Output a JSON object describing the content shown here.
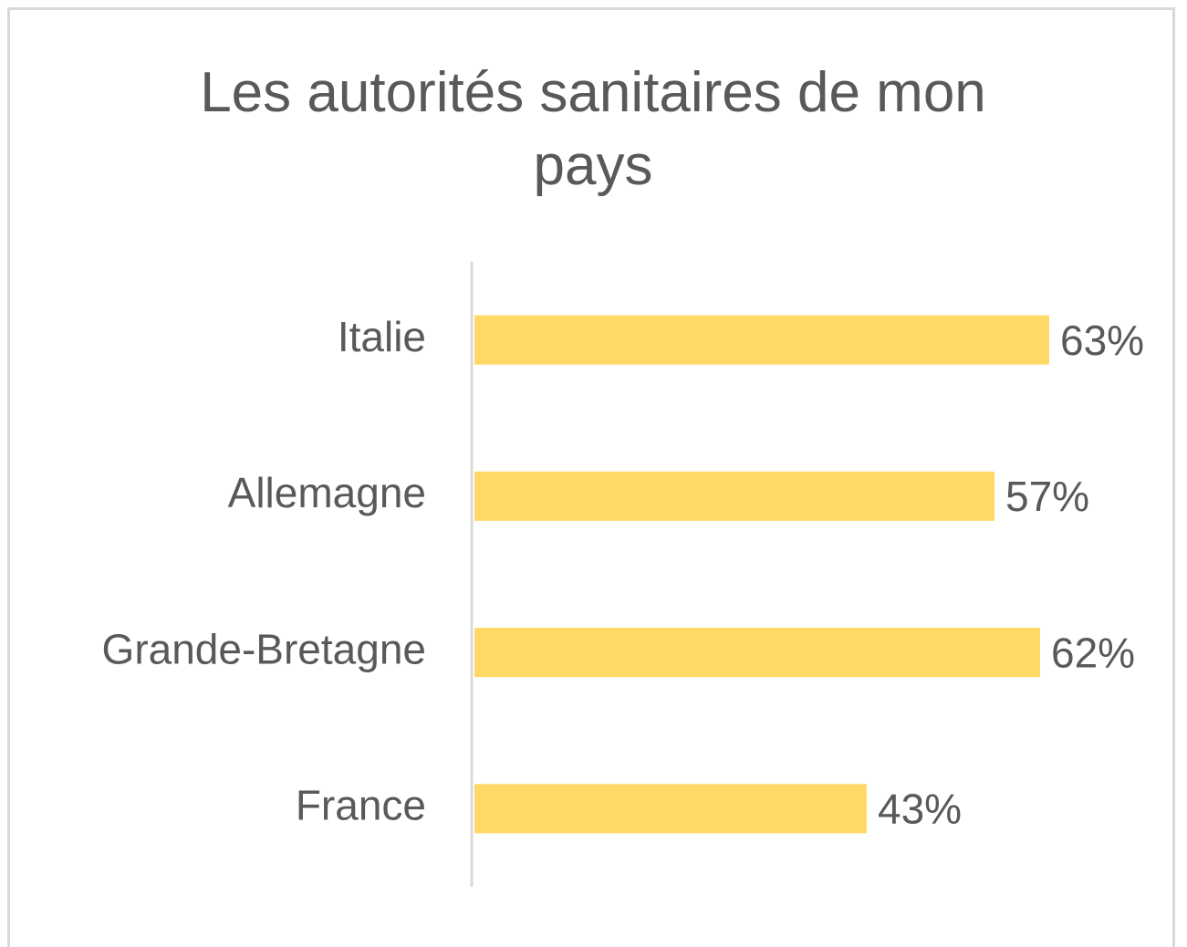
{
  "chart_data": {
    "type": "bar",
    "orientation": "horizontal",
    "title": "Les autorités sanitaires de mon pays",
    "categories": [
      "Italie",
      "Allemagne",
      "Grande-Bretagne",
      "France"
    ],
    "values": [
      63,
      57,
      62,
      43
    ],
    "value_labels": [
      "63%",
      "57%",
      "62%",
      "43%"
    ],
    "color": "#FFD966"
  }
}
